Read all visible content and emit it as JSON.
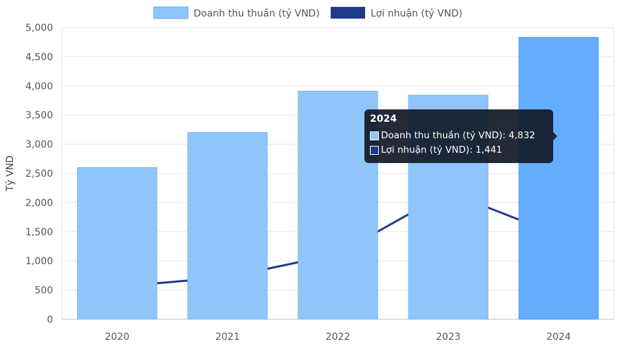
{
  "chart_data": {
    "type": "bar",
    "categories": [
      "2020",
      "2021",
      "2022",
      "2023",
      "2024"
    ],
    "series": [
      {
        "name": "Doanh thu thuần (tỷ VND)",
        "kind": "bar",
        "values": [
          2600,
          3200,
          3910,
          3840,
          4832
        ],
        "color": "#90c5fb",
        "highlight_color": "#64adfc"
      },
      {
        "name": "Lợi nhuận (tỷ VND)",
        "kind": "line",
        "values": [
          560,
          720,
          1120,
          2180,
          1441
        ],
        "color": "#1e3a8a"
      }
    ],
    "ylabel": "Tỷ VND",
    "ylim": [
      0,
      5000
    ],
    "yticks": [
      "0",
      "500",
      "1,000",
      "1,500",
      "2,000",
      "2,500",
      "3,000",
      "3,500",
      "4,000",
      "4,500",
      "5,000"
    ],
    "grid": true,
    "legend": "top-center",
    "tooltip": {
      "title": "2024",
      "rows": [
        "Doanh thu thuần (tỷ VND): 4,832",
        "Lợi nhuận (tỷ VND): 1,441"
      ]
    }
  }
}
